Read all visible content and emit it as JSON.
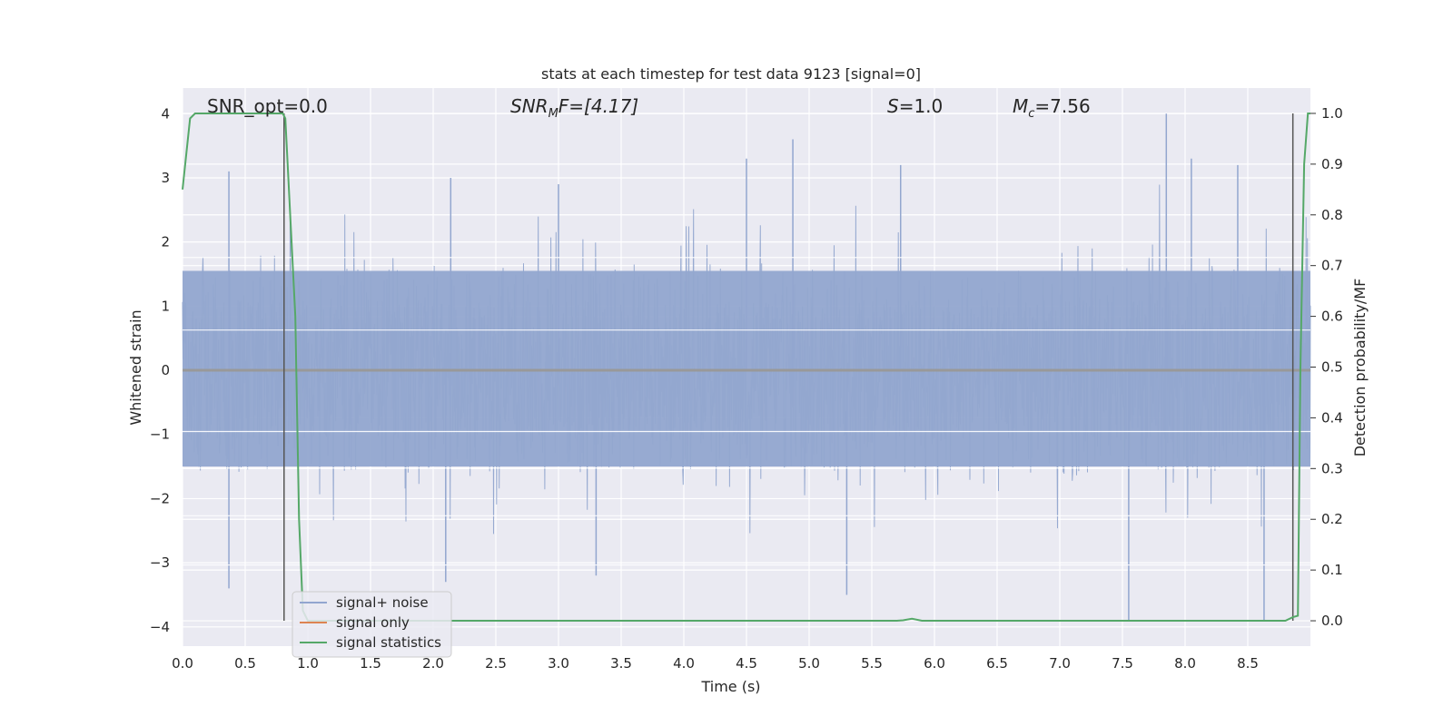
{
  "chart_data": {
    "type": "line",
    "title": "stats at each timestep for test data 9123 [signal=0]",
    "xlabel": "Time (s)",
    "ylabel": "Whitened strain",
    "ylabel_right": "Detection probability/MF",
    "xlim": [
      0.0,
      9.0
    ],
    "ylim": [
      -4.3,
      4.4
    ],
    "ylim_right": [
      -0.05,
      1.05
    ],
    "x_ticks": [
      "0.0",
      "0.5",
      "1.0",
      "1.5",
      "2.0",
      "2.5",
      "3.0",
      "3.5",
      "4.0",
      "4.5",
      "5.0",
      "5.5",
      "6.0",
      "6.5",
      "7.0",
      "7.5",
      "8.0",
      "8.5"
    ],
    "y_ticks": [
      "4",
      "3",
      "2",
      "1",
      "0",
      "−1",
      "−2",
      "−3",
      "−4"
    ],
    "y_right_ticks": [
      "1.0",
      "0.9",
      "0.8",
      "0.7",
      "0.6",
      "0.5",
      "0.4",
      "0.3",
      "0.2",
      "0.1",
      "0.0"
    ],
    "annotations": {
      "snr_opt": "SNR_opt=0.0",
      "snr_mf_base": "SNR",
      "snr_mf_sub": "M",
      "snr_mf_rest": "F=[4.17]",
      "s_sym": "S",
      "s_val": "=1.0",
      "mc_sym": "M",
      "mc_sub": "c",
      "mc_val": "=7.56"
    },
    "grid": true,
    "legend_position": "lower-left",
    "legend": [
      "signal+ noise",
      "signal only",
      "signal statistics"
    ],
    "series": [
      {
        "name": "signal+ noise",
        "color": "#92a6cf",
        "description_values": "whitened noise time series, approx. uniform amplitude ±1.6 with peaks to ±4",
        "noise_peaks_pos": [
          [
            0.37,
            3.1
          ],
          [
            0.86,
            2.4
          ],
          [
            2.14,
            3.0
          ],
          [
            3.0,
            2.9
          ],
          [
            4.5,
            3.3
          ],
          [
            4.87,
            3.6
          ],
          [
            5.73,
            3.2
          ],
          [
            7.85,
            4.0
          ],
          [
            8.05,
            3.3
          ],
          [
            8.42,
            3.2
          ]
        ],
        "noise_peaks_neg": [
          [
            0.37,
            -3.4
          ],
          [
            2.1,
            -3.3
          ],
          [
            3.3,
            -3.2
          ],
          [
            5.3,
            -3.5
          ],
          [
            7.55,
            -3.9
          ],
          [
            8.63,
            -3.9
          ]
        ]
      },
      {
        "name": "signal only",
        "color": "#dd8452",
        "x": [
          0.0,
          9.0
        ],
        "y": [
          0.0,
          0.0
        ]
      },
      {
        "name": "signal statistics",
        "color": "#55a868",
        "axis": "right",
        "x": [
          0.0,
          0.06,
          0.1,
          0.2,
          0.8,
          0.82,
          0.9,
          0.93,
          0.96,
          1.0,
          5.7,
          5.75,
          5.82,
          5.9,
          8.8,
          8.86,
          8.9,
          8.92,
          8.95,
          8.98,
          9.0
        ],
        "y": [
          0.85,
          0.99,
          1.0,
          1.0,
          1.0,
          0.99,
          0.6,
          0.2,
          0.02,
          0.0,
          0.0,
          0.001,
          0.004,
          0.0,
          0.0,
          0.007,
          0.01,
          0.5,
          0.9,
          1.0,
          1.0
        ]
      }
    ],
    "vertical_lines": [
      {
        "x": 0.81,
        "y_range_right": [
          0.0,
          1.0
        ],
        "color": "#555555"
      },
      {
        "x": 8.86,
        "y_range_right": [
          0.0,
          1.0
        ],
        "color": "#555555"
      }
    ],
    "horizontal_ref_lines_right": [
      0.716,
      0.573,
      0.373,
      0.301,
      0.207,
      0.11
    ]
  }
}
